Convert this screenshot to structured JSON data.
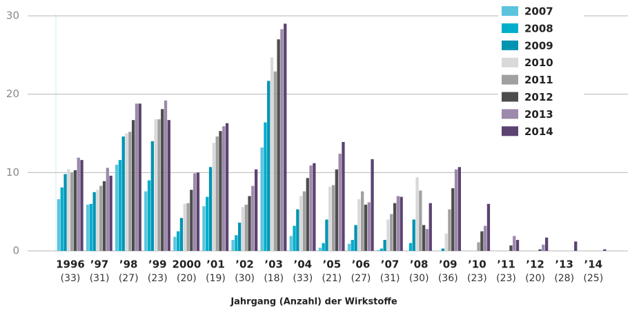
{
  "chart_data": {
    "type": "bar",
    "xlabel": "Jahrgang (Anzahl) der Wirkstoffe",
    "categories": [
      "1996",
      "’97",
      "’98",
      "’99",
      "2000",
      "’01",
      "’02",
      "’03",
      "’04",
      "’05",
      "’06",
      "’07",
      "’08",
      "’09",
      "’10",
      "’11",
      "’12",
      "’13",
      "’14"
    ],
    "category_counts": [
      "(33)",
      "(31)",
      "(27)",
      "(23)",
      "(20)",
      "(19)",
      "(30)",
      "(18)",
      "(33)",
      "(21)",
      "(27)",
      "(31)",
      "(30)",
      "(36)",
      "(23)",
      "(23)",
      "(20)",
      "(28)",
      "(25)"
    ],
    "series": [
      {
        "name": "2007",
        "color": "#5bc4dd",
        "values": [
          6.6,
          5.9,
          11.0,
          7.6,
          1.8,
          5.7,
          1.4,
          13.2,
          1.9,
          0.4,
          0.9,
          0.1,
          0,
          0,
          0,
          0,
          0,
          0,
          0
        ]
      },
      {
        "name": "2008",
        "color": "#00aecb",
        "values": [
          8.1,
          6.0,
          11.6,
          9.0,
          2.5,
          6.9,
          2.0,
          16.4,
          3.2,
          1.0,
          1.4,
          0.3,
          1.0,
          0,
          0,
          0,
          0,
          0,
          0
        ]
      },
      {
        "name": "2009",
        "color": "#0093b2",
        "values": [
          9.8,
          7.5,
          14.6,
          14.0,
          4.2,
          10.7,
          3.6,
          21.7,
          5.3,
          4.0,
          3.3,
          1.4,
          4.0,
          0.3,
          0,
          0,
          0,
          0,
          0
        ]
      },
      {
        "name": "2010",
        "color": "#d9d9d9",
        "values": [
          10.4,
          7.8,
          15.0,
          16.8,
          6.0,
          13.8,
          5.6,
          24.7,
          7.0,
          8.2,
          6.6,
          4.0,
          9.4,
          2.2,
          0,
          0,
          0,
          0,
          0
        ]
      },
      {
        "name": "2011",
        "color": "#a0a0a0",
        "values": [
          10.0,
          8.3,
          15.2,
          16.8,
          6.1,
          14.6,
          5.9,
          22.9,
          7.6,
          8.4,
          7.6,
          4.7,
          7.7,
          5.3,
          1.1,
          0,
          0,
          0,
          0
        ]
      },
      {
        "name": "2012",
        "color": "#4d4d4d",
        "values": [
          10.3,
          8.9,
          16.7,
          18.1,
          7.8,
          15.3,
          7.0,
          27.0,
          9.3,
          10.4,
          5.9,
          6.1,
          3.3,
          8.0,
          2.5,
          0.7,
          0.2,
          0,
          0
        ]
      },
      {
        "name": "2013",
        "color": "#9c89ab",
        "values": [
          11.9,
          10.6,
          18.8,
          19.2,
          9.9,
          15.9,
          8.3,
          28.3,
          10.9,
          12.4,
          6.2,
          7.0,
          2.8,
          10.4,
          3.2,
          1.9,
          0.8,
          0,
          0
        ]
      },
      {
        "name": "2014",
        "color": "#5b4371",
        "values": [
          11.6,
          9.6,
          18.8,
          16.7,
          10.0,
          16.3,
          10.4,
          29.0,
          11.2,
          13.9,
          11.7,
          6.9,
          6.1,
          10.7,
          6.0,
          1.4,
          1.7,
          1.2,
          0.2
        ]
      }
    ],
    "ylim": [
      0,
      30
    ],
    "yticks": [
      0,
      10,
      20,
      30
    ],
    "grid": true,
    "legend": "top-right"
  }
}
